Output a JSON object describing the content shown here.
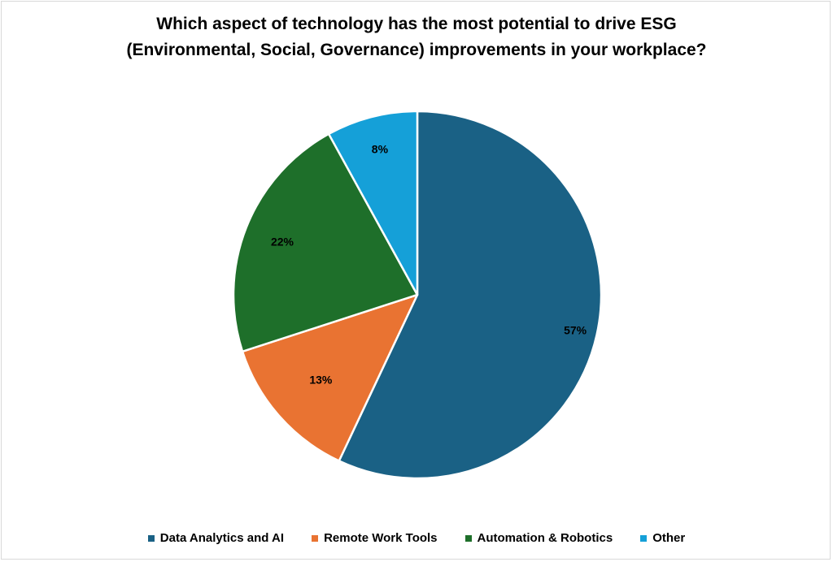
{
  "chart_data": {
    "type": "pie",
    "title_lines": [
      "Which aspect of technology has the most potential to drive ESG",
      "(Environmental, Social, Governance) improvements in your workplace?"
    ],
    "categories": [
      "Data Analytics and AI",
      "Remote Work Tools",
      "Automation & Robotics",
      "Other"
    ],
    "values": [
      57,
      13,
      22,
      8
    ],
    "data_labels": [
      "57%",
      "13%",
      "22%",
      "8%"
    ],
    "colors": [
      "#1a6185",
      "#e97332",
      "#1e6f2a",
      "#15a0d8"
    ],
    "legend_position": "bottom",
    "start_angle": "12 o'clock, clockwise"
  }
}
